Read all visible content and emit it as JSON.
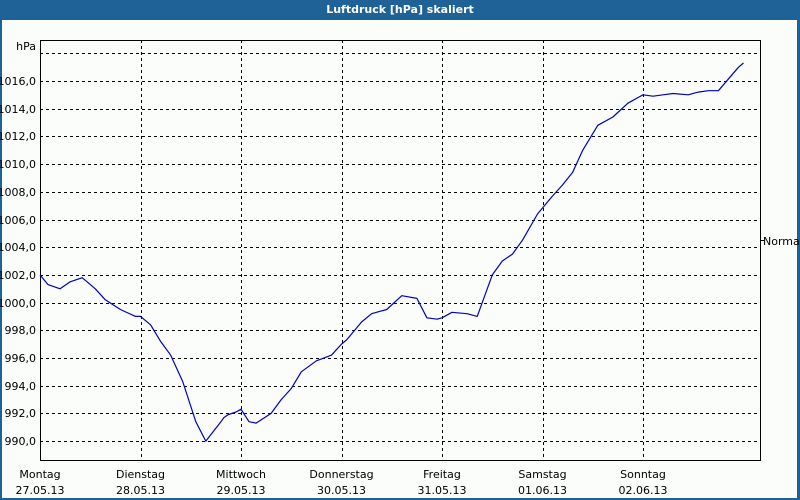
{
  "window": {
    "title": "Luftdruck [hPa] skaliert"
  },
  "axis": {
    "y_unit": "hPa",
    "y_ticks": [
      "1016,0",
      "1014,0",
      "1012,0",
      "1010,0",
      "1008,0",
      "1006,0",
      "1004,0",
      "1002,0",
      "1000,0",
      "998,0",
      "996,0",
      "994,0",
      "992,0",
      "990,0"
    ],
    "reference_label": "Normal",
    "x_ticks": [
      {
        "day": "Montag",
        "date": "27.05.13"
      },
      {
        "day": "Dienstag",
        "date": "28.05.13"
      },
      {
        "day": "Mittwoch",
        "date": "29.05.13"
      },
      {
        "day": "Donnerstag",
        "date": "30.05.13"
      },
      {
        "day": "Freitag",
        "date": "31.05.13"
      },
      {
        "day": "Samstag",
        "date": "01.06.13"
      },
      {
        "day": "Sonntag",
        "date": "02.06.13"
      }
    ]
  },
  "colors": {
    "titlebar": "#1f6298",
    "line": "#0000c0",
    "background": "#fbfdfb",
    "grid": "#000000"
  },
  "chart_data": {
    "type": "line",
    "title": "Luftdruck [hPa] skaliert",
    "xlabel": "",
    "ylabel": "hPa",
    "ylim": [
      988.6,
      1019.0
    ],
    "grid": true,
    "legend": "none",
    "annotations": [
      "Normal"
    ],
    "categories": [
      "Montag 27.05.13",
      "Dienstag 28.05.13",
      "Mittwoch 29.05.13",
      "Donnerstag 30.05.13",
      "Freitag 31.05.13",
      "Samstag 01.06.13",
      "Sonntag 02.06.13"
    ],
    "series": [
      {
        "name": "Luftdruck",
        "x_day_offset": [
          0.0,
          0.08,
          0.2,
          0.3,
          0.42,
          0.55,
          0.65,
          0.8,
          0.95,
          1.0,
          1.1,
          1.2,
          1.3,
          1.42,
          1.55,
          1.65,
          1.8,
          1.83,
          1.87,
          1.95,
          2.0,
          2.08,
          2.15,
          2.3,
          2.4,
          2.5,
          2.6,
          2.75,
          2.9,
          3.0,
          3.05,
          3.2,
          3.3,
          3.45,
          3.6,
          3.75,
          3.85,
          3.95,
          4.0,
          4.1,
          4.25,
          4.35,
          4.5,
          4.6,
          4.7,
          4.8,
          4.95,
          5.1,
          5.2,
          5.3,
          5.4,
          5.55,
          5.7,
          5.85,
          6.0,
          6.1,
          6.2,
          6.3,
          6.45,
          6.55,
          6.65,
          6.75,
          6.95,
          7.0
        ],
        "values": [
          1002.0,
          1001.3,
          1001.0,
          1001.5,
          1001.8,
          1001.0,
          1000.2,
          999.5,
          999.0,
          999.0,
          998.4,
          997.2,
          996.2,
          994.3,
          991.4,
          990.0,
          991.4,
          991.7,
          991.9,
          992.1,
          992.3,
          991.4,
          991.3,
          992.0,
          993.0,
          993.8,
          995.0,
          995.8,
          996.2,
          997.0,
          997.3,
          998.6,
          999.2,
          999.5,
          1000.5,
          1000.3,
          998.9,
          998.8,
          998.9,
          999.3,
          999.2,
          999.0,
          1002.0,
          1003.0,
          1003.5,
          1004.5,
          1006.4,
          1007.7,
          1008.5,
          1009.4,
          1011.0,
          1012.8,
          1013.4,
          1014.4,
          1015.0,
          1014.9,
          1015.0,
          1015.1,
          1015.0,
          1015.2,
          1015.3,
          1015.3,
          1017.0,
          1017.3
        ]
      }
    ]
  }
}
